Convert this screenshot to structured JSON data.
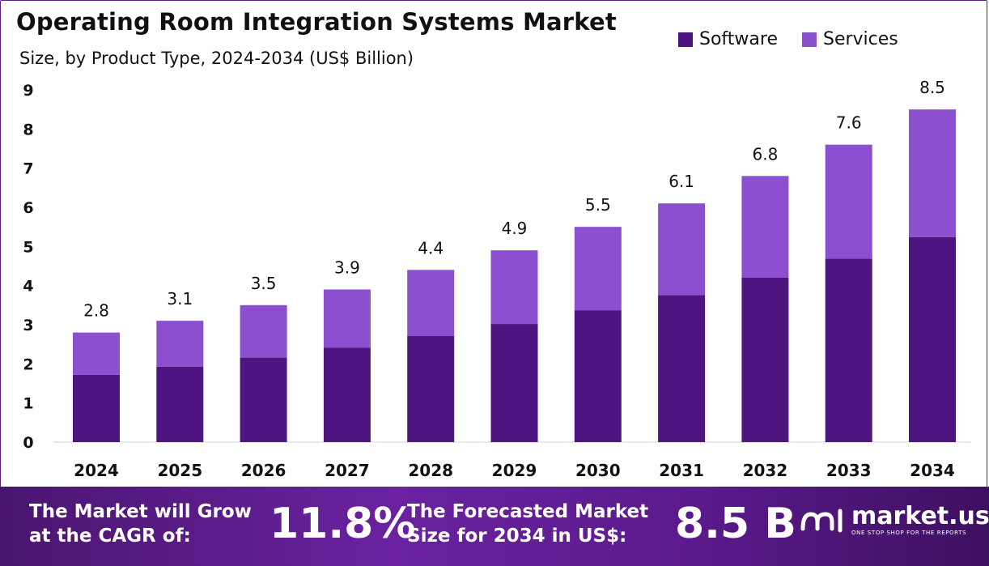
{
  "chart_data": {
    "type": "bar",
    "stacked": true,
    "title": "Operating Room Integration Systems Market",
    "subtitle": "Size, by Product Type, 2024-2034 (US$ Billion)",
    "categories": [
      "2024",
      "2025",
      "2026",
      "2027",
      "2028",
      "2029",
      "2030",
      "2031",
      "2032",
      "2033",
      "2034"
    ],
    "series": [
      {
        "name": "Software",
        "color": "#4e1580",
        "values": [
          1.72,
          1.93,
          2.16,
          2.41,
          2.71,
          3.02,
          3.37,
          3.76,
          4.2,
          4.69,
          5.24
        ]
      },
      {
        "name": "Services",
        "color": "#8b4fcf",
        "values": [
          1.08,
          1.17,
          1.34,
          1.49,
          1.69,
          1.88,
          2.13,
          2.34,
          2.6,
          2.91,
          3.26
        ]
      }
    ],
    "totals": [
      "2.8",
      "3.1",
      "3.5",
      "3.9",
      "4.4",
      "4.9",
      "5.5",
      "6.1",
      "6.8",
      "7.6",
      "8.5"
    ],
    "yticks": [
      "0",
      "1",
      "2",
      "3",
      "4",
      "5",
      "6",
      "7",
      "8",
      "9"
    ],
    "ylim": [
      0,
      9
    ],
    "legend_position": "top-right",
    "grid": false
  },
  "footer": {
    "cagr_text_line1": "The Market will Grow",
    "cagr_text_line2": "at the CAGR of:",
    "cagr_value": "11.8%",
    "forecast_text_line1": "The Forecasted Market",
    "forecast_text_line2": "Size for 2034 in US$:",
    "forecast_value": "8.5 B",
    "brand_name": "market.us",
    "brand_tagline": "ONE STOP SHOP FOR THE REPORTS"
  }
}
